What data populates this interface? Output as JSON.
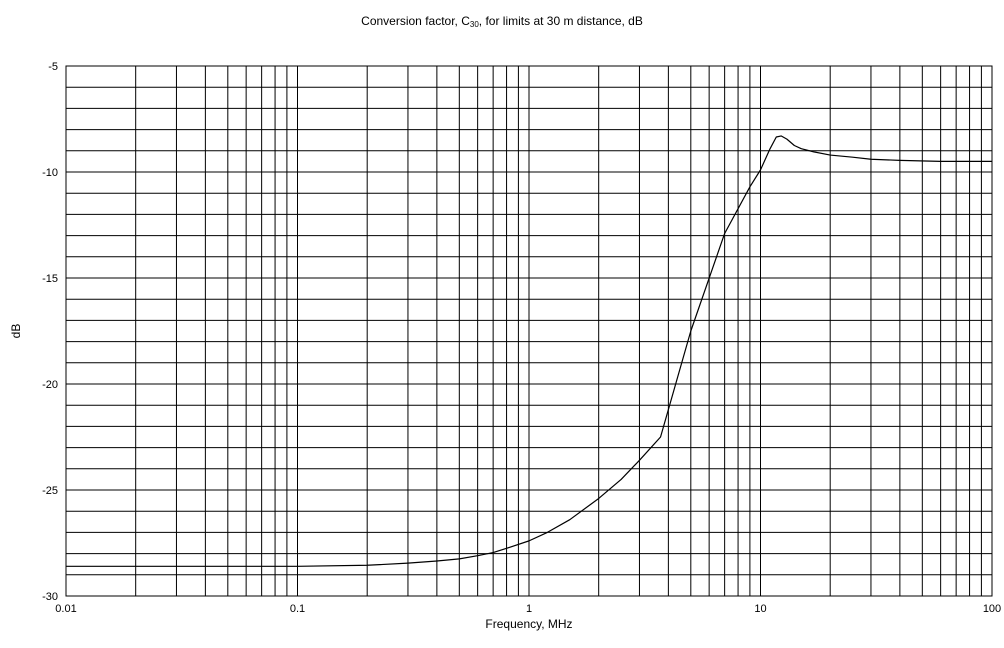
{
  "chart_data": {
    "type": "line",
    "title": {
      "prefix": "Conversion factor, C",
      "subscript": "30",
      "suffix": ", for limits at 30 m distance, dB"
    },
    "xlabel": "Frequency, MHz",
    "ylabel": "dB",
    "xscale": "log",
    "xlim": [
      0.01,
      100
    ],
    "ylim": [
      -30,
      -5
    ],
    "x_tick_values": [
      0.01,
      0.1,
      1,
      10,
      100
    ],
    "x_tick_labels": [
      "0.01",
      "0.1",
      "1",
      "10",
      "100"
    ],
    "y_tick_values": [
      -5,
      -10,
      -15,
      -20,
      -25,
      -30
    ],
    "y_tick_labels": [
      "-5",
      "-10",
      "-15",
      "-20",
      "-25",
      "-30"
    ],
    "y_minor_step": 1,
    "grid": true,
    "legend": "none",
    "series": [
      {
        "color": "#000000",
        "points": [
          [
            0.01,
            -28.6
          ],
          [
            0.05,
            -28.6
          ],
          [
            0.1,
            -28.6
          ],
          [
            0.2,
            -28.55
          ],
          [
            0.3,
            -28.45
          ],
          [
            0.4,
            -28.35
          ],
          [
            0.5,
            -28.25
          ],
          [
            0.6,
            -28.1
          ],
          [
            0.7,
            -27.95
          ],
          [
            0.8,
            -27.75
          ],
          [
            1.0,
            -27.4
          ],
          [
            1.2,
            -27.0
          ],
          [
            1.5,
            -26.4
          ],
          [
            2.0,
            -25.4
          ],
          [
            2.5,
            -24.5
          ],
          [
            3.0,
            -23.6
          ],
          [
            3.7,
            -22.5
          ],
          [
            5.0,
            -17.5
          ],
          [
            7.0,
            -12.9
          ],
          [
            9.0,
            -10.7
          ],
          [
            10.0,
            -9.9
          ],
          [
            11.0,
            -8.9
          ],
          [
            11.7,
            -8.35
          ],
          [
            12.3,
            -8.3
          ],
          [
            13.0,
            -8.45
          ],
          [
            14.0,
            -8.75
          ],
          [
            15.0,
            -8.9
          ],
          [
            17.0,
            -9.05
          ],
          [
            20.0,
            -9.2
          ],
          [
            25.0,
            -9.3
          ],
          [
            30.0,
            -9.4
          ],
          [
            40.0,
            -9.45
          ],
          [
            60.0,
            -9.5
          ],
          [
            100.0,
            -9.5
          ]
        ]
      }
    ]
  }
}
